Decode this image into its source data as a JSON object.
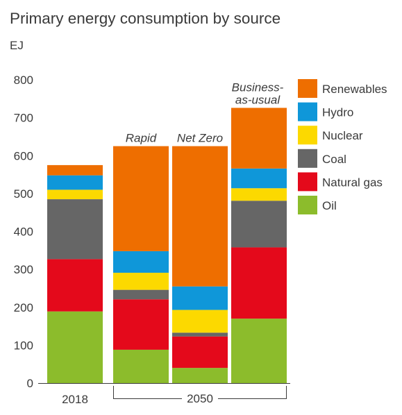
{
  "title": "Primary energy consumption by source",
  "unit": "EJ",
  "group_label": "2050",
  "chart_data": {
    "type": "bar",
    "stacked": true,
    "title": "Primary energy consumption by source",
    "ylabel": "EJ",
    "ylim": [
      0,
      800
    ],
    "yticks": [
      0,
      100,
      200,
      300,
      400,
      500,
      600,
      700,
      800
    ],
    "categories": [
      "2018",
      "Rapid",
      "Net Zero",
      "Business-as-usual"
    ],
    "x_tick_labels": [
      "2018",
      "",
      "",
      ""
    ],
    "scenario_labels": [
      "",
      "Rapid",
      "Net Zero",
      "Business-\nas-usual"
    ],
    "group_label": "2050",
    "grid": false,
    "legend_position": "right",
    "series": [
      {
        "name": "Oil",
        "color": "#8cbc2c",
        "values": [
          189,
          88,
          40,
          170
        ]
      },
      {
        "name": "Natural gas",
        "color": "#e4091b",
        "values": [
          138,
          133,
          83,
          188
        ]
      },
      {
        "name": "Coal",
        "color": "#666666",
        "values": [
          158,
          25,
          10,
          123
        ]
      },
      {
        "name": "Nuclear",
        "color": "#fcd900",
        "values": [
          25,
          45,
          60,
          33
        ]
      },
      {
        "name": "Hydro",
        "color": "#0f97d9",
        "values": [
          38,
          57,
          62,
          52
        ]
      },
      {
        "name": "Renewables",
        "color": "#ee6e00",
        "values": [
          27,
          277,
          370,
          160
        ]
      }
    ]
  }
}
